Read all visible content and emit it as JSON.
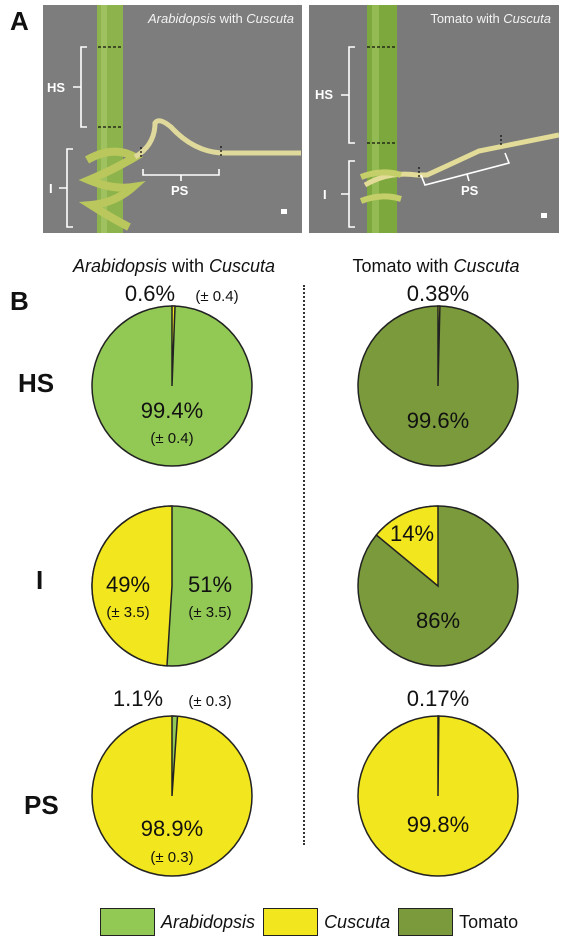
{
  "panels": {
    "a": {
      "letter": "A",
      "left_caption_host": "Arabidopsis",
      "left_caption_rest": " with ",
      "left_caption_parasite": "Cuscuta",
      "right_caption_host": "Tomato",
      "right_caption_rest": " with ",
      "right_caption_parasite": "Cuscuta",
      "labels": {
        "hs": "HS",
        "i": "I",
        "ps": "PS"
      }
    },
    "b": {
      "letter": "B",
      "column_titles": [
        {
          "host": "Arabidopsis",
          "with": " with ",
          "parasite": "Cuscuta",
          "host_italic": true
        },
        {
          "host": "Tomato",
          "with": " with ",
          "parasite": "Cuscuta",
          "host_italic": false
        }
      ],
      "row_labels": [
        "HS",
        "I",
        "PS"
      ]
    }
  },
  "colors": {
    "arabidopsis": "#92c955",
    "cuscuta": "#f2e61e",
    "tomato": "#7a9a3c"
  },
  "chart_data": [
    {
      "type": "pie",
      "row": "HS",
      "column": "Arabidopsis with Cuscuta",
      "slices": [
        {
          "name": "Arabidopsis",
          "value": 99.4,
          "label": "99.4%",
          "sublabel": "(± 0.4)"
        },
        {
          "name": "Cuscuta",
          "value": 0.6,
          "label": "0.6%",
          "sublabel": "(± 0.4)"
        }
      ]
    },
    {
      "type": "pie",
      "row": "HS",
      "column": "Tomato with Cuscuta",
      "slices": [
        {
          "name": "Tomato",
          "value": 99.6,
          "label": "99.6%",
          "sublabel": ""
        },
        {
          "name": "Cuscuta",
          "value": 0.38,
          "label": "0.38%",
          "sublabel": ""
        }
      ]
    },
    {
      "type": "pie",
      "row": "I",
      "column": "Arabidopsis with Cuscuta",
      "slices": [
        {
          "name": "Arabidopsis",
          "value": 51,
          "label": "51%",
          "sublabel": "(± 3.5)"
        },
        {
          "name": "Cuscuta",
          "value": 49,
          "label": "49%",
          "sublabel": "(± 3.5)"
        }
      ]
    },
    {
      "type": "pie",
      "row": "I",
      "column": "Tomato with Cuscuta",
      "slices": [
        {
          "name": "Tomato",
          "value": 86,
          "label": "86%",
          "sublabel": ""
        },
        {
          "name": "Cuscuta",
          "value": 14,
          "label": "14%",
          "sublabel": ""
        }
      ]
    },
    {
      "type": "pie",
      "row": "PS",
      "column": "Arabidopsis with Cuscuta",
      "slices": [
        {
          "name": "Cuscuta",
          "value": 98.9,
          "label": "98.9%",
          "sublabel": "(± 0.3)"
        },
        {
          "name": "Arabidopsis",
          "value": 1.1,
          "label": "1.1%",
          "sublabel": "(± 0.3)"
        }
      ]
    },
    {
      "type": "pie",
      "row": "PS",
      "column": "Tomato with Cuscuta",
      "slices": [
        {
          "name": "Cuscuta",
          "value": 99.8,
          "label": "99.8%",
          "sublabel": ""
        },
        {
          "name": "Tomato",
          "value": 0.17,
          "label": "0.17%",
          "sublabel": ""
        }
      ]
    }
  ],
  "legend": [
    "Arabidopsis",
    "Cuscuta",
    "Tomato"
  ]
}
